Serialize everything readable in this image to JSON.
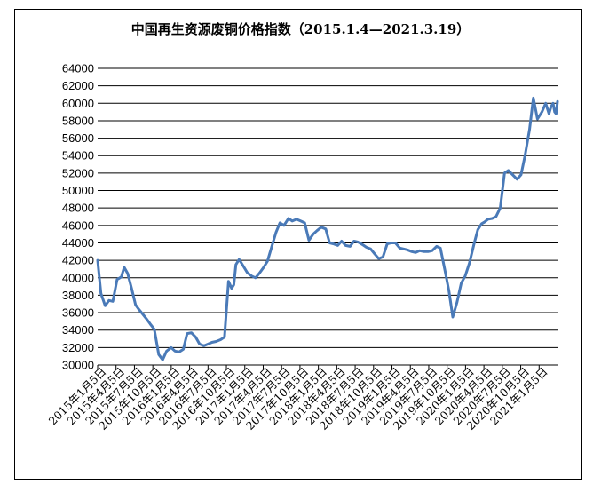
{
  "chart_data": {
    "type": "line",
    "title": "中国再生资源废铜价格指数（2015.1.4—2021.3.19）",
    "xlabel": "",
    "ylabel": "",
    "ylim": [
      30000,
      64000
    ],
    "yticks": [
      30000,
      32000,
      34000,
      36000,
      38000,
      40000,
      42000,
      44000,
      46000,
      48000,
      50000,
      52000,
      54000,
      56000,
      58000,
      60000,
      62000,
      64000
    ],
    "grid": true,
    "legend": "none",
    "x_range": [
      "2015-01-04",
      "2021-03-19"
    ],
    "categories": [
      "2015年1月5日",
      "2015年4月5日",
      "2015年7月5日",
      "2015年10月5日",
      "2016年1月5日",
      "2016年4月5日",
      "2016年7月5日",
      "2016年10月5日",
      "2017年1月5日",
      "2017年4月5日",
      "2017年7月5日",
      "2017年10月5日",
      "2018年1月5日",
      "2018年4月5日",
      "2018年7月5日",
      "2018年10月5日",
      "2019年1月5日",
      "2019年4月5日",
      "2019年7月5日",
      "2019年10月5日",
      "2020年1月5日",
      "2020年4月5日",
      "2020年7月5日",
      "2020年10月5日",
      "2021年1月5日"
    ],
    "series": [
      {
        "color": "#4a7ab8",
        "x": [
          "2015-01-04",
          "2015-01-20",
          "2015-02-10",
          "2015-03-01",
          "2015-03-20",
          "2015-04-10",
          "2015-05-01",
          "2015-05-15",
          "2015-06-01",
          "2015-06-20",
          "2015-07-10",
          "2015-07-25",
          "2015-08-15",
          "2015-09-01",
          "2015-09-20",
          "2015-10-10",
          "2015-11-01",
          "2015-11-20",
          "2015-12-10",
          "2016-01-01",
          "2016-01-20",
          "2016-02-10",
          "2016-03-01",
          "2016-03-20",
          "2016-04-10",
          "2016-05-01",
          "2016-05-20",
          "2016-06-10",
          "2016-07-01",
          "2016-07-20",
          "2016-08-10",
          "2016-09-01",
          "2016-09-20",
          "2016-10-10",
          "2016-10-25",
          "2016-11-05",
          "2016-11-15",
          "2016-12-01",
          "2016-12-20",
          "2017-01-10",
          "2017-02-01",
          "2017-02-20",
          "2017-03-10",
          "2017-04-01",
          "2017-04-20",
          "2017-05-10",
          "2017-06-01",
          "2017-06-20",
          "2017-07-10",
          "2017-08-01",
          "2017-08-20",
          "2017-09-10",
          "2017-10-01",
          "2017-10-20",
          "2017-11-10",
          "2017-12-01",
          "2017-12-20",
          "2018-01-10",
          "2018-02-01",
          "2018-02-20",
          "2018-03-10",
          "2018-04-01",
          "2018-04-20",
          "2018-05-10",
          "2018-06-01",
          "2018-06-20",
          "2018-07-10",
          "2018-08-01",
          "2018-08-20",
          "2018-09-10",
          "2018-10-01",
          "2018-10-20",
          "2018-11-10",
          "2018-12-01",
          "2018-12-20",
          "2019-01-10",
          "2019-02-01",
          "2019-02-20",
          "2019-03-10",
          "2019-04-01",
          "2019-04-20",
          "2019-05-10",
          "2019-06-01",
          "2019-06-20",
          "2019-07-10",
          "2019-08-01",
          "2019-08-20",
          "2019-09-10",
          "2019-10-01",
          "2019-10-20",
          "2019-11-10",
          "2019-12-01",
          "2019-12-20",
          "2020-01-10",
          "2020-02-01",
          "2020-02-20",
          "2020-03-10",
          "2020-03-25",
          "2020-04-10",
          "2020-05-01",
          "2020-05-20",
          "2020-06-10",
          "2020-07-01",
          "2020-07-20",
          "2020-08-10",
          "2020-09-01",
          "2020-09-20",
          "2020-10-10",
          "2020-11-01",
          "2020-11-20",
          "2020-12-10",
          "2021-01-01",
          "2021-01-20",
          "2021-02-05",
          "2021-02-15",
          "2021-02-25",
          "2021-03-05",
          "2021-03-12",
          "2021-03-19"
        ],
        "values": [
          42000,
          38200,
          36800,
          37400,
          37300,
          39800,
          40100,
          41200,
          40500,
          38800,
          36900,
          36400,
          35800,
          35300,
          34700,
          34100,
          31200,
          30600,
          31600,
          32000,
          31600,
          31500,
          31800,
          33600,
          33700,
          33200,
          32400,
          32200,
          32400,
          32600,
          32700,
          32900,
          33200,
          39600,
          38800,
          39200,
          41500,
          42100,
          41400,
          40600,
          40200,
          40000,
          40500,
          41200,
          41900,
          43500,
          45200,
          46300,
          46000,
          46800,
          46500,
          46700,
          46500,
          46300,
          44300,
          45000,
          45400,
          45800,
          45600,
          44000,
          43900,
          43700,
          44200,
          43700,
          43600,
          44200,
          44100,
          43800,
          43500,
          43300,
          42700,
          42200,
          42400,
          43900,
          44000,
          44000,
          43400,
          43300,
          43200,
          43000,
          42900,
          43100,
          43000,
          43000,
          43100,
          43600,
          43400,
          41000,
          38500,
          35500,
          37200,
          39400,
          40200,
          41700,
          43800,
          45500,
          46200,
          46400,
          46700,
          46800,
          47000,
          48000,
          52000,
          52300,
          51800,
          51300,
          51800,
          54000,
          57000,
          60600,
          58200,
          59000,
          60000,
          58800,
          59600,
          60000,
          59000,
          58800,
          60200
        ]
      }
    ]
  }
}
